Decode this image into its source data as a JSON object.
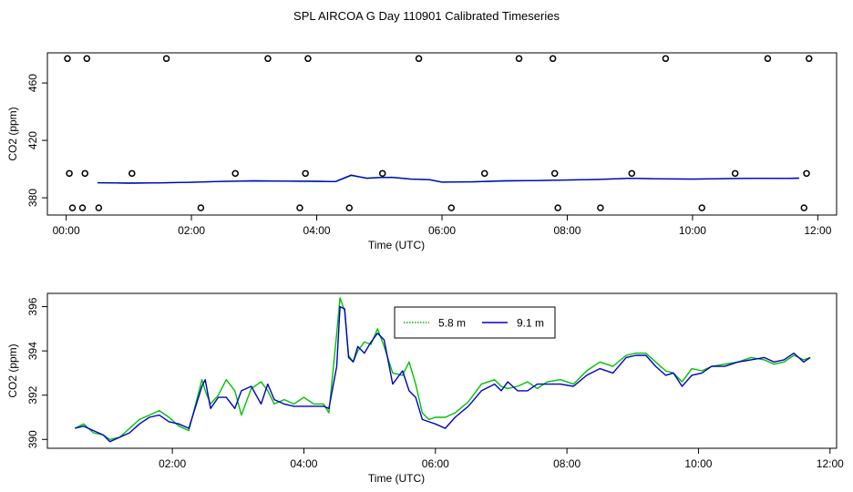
{
  "page_title": "SPL AIRCOA G  Day 110901  Calibrated Timeseries",
  "chart_data": [
    {
      "id": "top",
      "type": "line",
      "title": "SPL AIRCOA G  Day 110901  Calibrated Timeseries",
      "xlabel": "Time (UTC)",
      "ylabel": "CO2 (ppm)",
      "xlim": [
        -0.3,
        12.3
      ],
      "ylim": [
        368,
        481
      ],
      "xticks": [
        0,
        2,
        4,
        6,
        8,
        10,
        12
      ],
      "xtick_labels": [
        "00:00",
        "02:00",
        "04:00",
        "06:00",
        "08:00",
        "10:00",
        "12:00"
      ],
      "yticks": [
        380,
        420,
        460
      ],
      "ytick_labels": [
        "380",
        "420",
        "460"
      ],
      "calibration_points": [
        {
          "x": 0.02,
          "y": 477
        },
        {
          "x": 0.33,
          "y": 477
        },
        {
          "x": 1.6,
          "y": 477
        },
        {
          "x": 3.22,
          "y": 477
        },
        {
          "x": 3.86,
          "y": 477
        },
        {
          "x": 5.63,
          "y": 477
        },
        {
          "x": 7.23,
          "y": 477
        },
        {
          "x": 7.77,
          "y": 477
        },
        {
          "x": 9.57,
          "y": 477
        },
        {
          "x": 11.2,
          "y": 477
        },
        {
          "x": 11.86,
          "y": 477
        },
        {
          "x": 0.05,
          "y": 397
        },
        {
          "x": 0.3,
          "y": 397
        },
        {
          "x": 1.05,
          "y": 397
        },
        {
          "x": 2.7,
          "y": 397
        },
        {
          "x": 3.82,
          "y": 397
        },
        {
          "x": 5.05,
          "y": 397
        },
        {
          "x": 6.68,
          "y": 397
        },
        {
          "x": 7.8,
          "y": 397
        },
        {
          "x": 9.03,
          "y": 397
        },
        {
          "x": 10.68,
          "y": 397
        },
        {
          "x": 11.82,
          "y": 397
        },
        {
          "x": 0.1,
          "y": 373
        },
        {
          "x": 0.26,
          "y": 373
        },
        {
          "x": 0.52,
          "y": 373
        },
        {
          "x": 2.15,
          "y": 373
        },
        {
          "x": 3.73,
          "y": 373
        },
        {
          "x": 4.52,
          "y": 373
        },
        {
          "x": 6.15,
          "y": 373
        },
        {
          "x": 7.85,
          "y": 373
        },
        {
          "x": 8.53,
          "y": 373
        },
        {
          "x": 10.15,
          "y": 373
        },
        {
          "x": 11.78,
          "y": 373
        }
      ],
      "series": [
        {
          "name": "5.8 m",
          "color": "#00c000",
          "x": [
            0.5,
            1.0,
            1.5,
            2.0,
            2.5,
            3.0,
            3.5,
            4.0,
            4.3,
            4.55,
            4.8,
            5.0,
            5.2,
            5.5,
            5.8,
            6.0,
            6.5,
            7.0,
            7.5,
            8.0,
            8.5,
            9.0,
            9.5,
            10.0,
            10.5,
            11.0,
            11.5,
            11.7
          ],
          "y": [
            390.5,
            390.2,
            390.4,
            390.8,
            391.4,
            391.8,
            391.6,
            391.5,
            391.3,
            395.5,
            393.8,
            394.2,
            394.3,
            393.1,
            392.6,
            391.0,
            391.2,
            391.8,
            392.0,
            392.4,
            392.8,
            393.6,
            393.2,
            393.0,
            393.3,
            393.6,
            393.5,
            393.7
          ]
        },
        {
          "name": "9.1 m",
          "color": "#0000cc",
          "x": [
            0.5,
            1.0,
            1.5,
            2.0,
            2.5,
            3.0,
            3.5,
            4.0,
            4.3,
            4.55,
            4.8,
            5.0,
            5.2,
            5.5,
            5.8,
            6.0,
            6.5,
            7.0,
            7.5,
            8.0,
            8.5,
            9.0,
            9.5,
            10.0,
            10.5,
            11.0,
            11.5,
            11.7
          ],
          "y": [
            390.5,
            390.2,
            390.4,
            390.8,
            391.4,
            391.8,
            391.6,
            391.5,
            391.3,
            395.8,
            393.6,
            394.1,
            394.2,
            393.0,
            392.6,
            390.9,
            391.1,
            391.8,
            392.0,
            392.4,
            392.8,
            393.6,
            393.2,
            393.0,
            393.3,
            393.6,
            393.5,
            393.7
          ]
        }
      ]
    },
    {
      "id": "bottom",
      "type": "line",
      "title": "",
      "xlabel": "Time (UTC)",
      "ylabel": "CO2 (ppm)",
      "xlim": [
        0.1,
        12.1
      ],
      "ylim": [
        389.6,
        396.6
      ],
      "xticks": [
        2,
        4,
        6,
        8,
        10,
        12
      ],
      "xtick_labels": [
        "02:00",
        "04:00",
        "06:00",
        "08:00",
        "10:00",
        "12:00"
      ],
      "yticks": [
        390,
        392,
        394,
        396
      ],
      "ytick_labels": [
        "390",
        "392",
        "394",
        "396"
      ],
      "legend": {
        "position": "top-center",
        "entries": [
          "5.8 m",
          "9.1 m"
        ]
      },
      "series": [
        {
          "name": "5.8 m",
          "color": "#00c000",
          "x": [
            0.52,
            0.65,
            0.8,
            0.95,
            1.05,
            1.2,
            1.35,
            1.5,
            1.65,
            1.8,
            1.95,
            2.1,
            2.25,
            2.45,
            2.5,
            2.58,
            2.7,
            2.82,
            2.95,
            3.05,
            3.2,
            3.35,
            3.45,
            3.55,
            3.7,
            3.85,
            4.0,
            4.15,
            4.3,
            4.38,
            4.5,
            4.55,
            4.62,
            4.68,
            4.75,
            4.82,
            4.92,
            5.02,
            5.12,
            5.22,
            5.35,
            5.5,
            5.6,
            5.7,
            5.8,
            5.9,
            6.0,
            6.15,
            6.3,
            6.5,
            6.7,
            6.9,
            7.0,
            7.1,
            7.25,
            7.4,
            7.55,
            7.7,
            7.9,
            8.1,
            8.3,
            8.5,
            8.7,
            8.9,
            9.05,
            9.2,
            9.35,
            9.5,
            9.62,
            9.75,
            9.9,
            10.05,
            10.2,
            10.4,
            10.6,
            10.8,
            11.0,
            11.15,
            11.3,
            11.45,
            11.6,
            11.7
          ],
          "y": [
            390.5,
            390.7,
            390.3,
            390.2,
            390.0,
            390.1,
            390.5,
            390.9,
            391.1,
            391.3,
            391.0,
            390.6,
            390.4,
            392.7,
            392.2,
            391.6,
            392.0,
            392.7,
            392.2,
            391.1,
            392.3,
            392.6,
            392.2,
            391.6,
            391.8,
            391.6,
            391.9,
            391.6,
            391.6,
            391.2,
            394.8,
            396.4,
            395.8,
            393.8,
            393.5,
            394.0,
            394.4,
            394.3,
            395.0,
            394.2,
            393.0,
            392.9,
            393.5,
            392.5,
            391.2,
            390.9,
            391.0,
            391.0,
            391.2,
            391.7,
            392.5,
            392.7,
            392.4,
            392.3,
            392.4,
            392.6,
            392.3,
            392.6,
            392.7,
            392.5,
            393.1,
            393.5,
            393.3,
            393.8,
            393.9,
            393.9,
            393.5,
            393.1,
            393.0,
            392.6,
            393.2,
            393.1,
            393.3,
            393.4,
            393.5,
            393.7,
            393.6,
            393.4,
            393.5,
            393.8,
            393.6,
            393.7
          ]
        },
        {
          "name": "9.1 m",
          "color": "#0000cc",
          "x": [
            0.52,
            0.65,
            0.8,
            0.95,
            1.05,
            1.2,
            1.35,
            1.5,
            1.65,
            1.8,
            1.95,
            2.1,
            2.25,
            2.45,
            2.5,
            2.58,
            2.7,
            2.82,
            2.95,
            3.05,
            3.2,
            3.35,
            3.45,
            3.55,
            3.7,
            3.85,
            4.0,
            4.15,
            4.3,
            4.38,
            4.5,
            4.55,
            4.62,
            4.68,
            4.75,
            4.82,
            4.92,
            5.02,
            5.12,
            5.22,
            5.35,
            5.5,
            5.6,
            5.7,
            5.8,
            5.9,
            6.0,
            6.15,
            6.3,
            6.5,
            6.7,
            6.9,
            7.0,
            7.1,
            7.25,
            7.4,
            7.55,
            7.7,
            7.9,
            8.1,
            8.3,
            8.5,
            8.7,
            8.9,
            9.05,
            9.2,
            9.35,
            9.5,
            9.62,
            9.75,
            9.9,
            10.05,
            10.2,
            10.4,
            10.6,
            10.8,
            11.0,
            11.15,
            11.3,
            11.45,
            11.6,
            11.7
          ],
          "y": [
            390.5,
            390.6,
            390.4,
            390.2,
            389.9,
            390.1,
            390.3,
            390.7,
            391.0,
            391.1,
            390.8,
            390.7,
            390.5,
            392.4,
            392.7,
            391.4,
            391.9,
            391.9,
            391.4,
            392.2,
            392.4,
            391.6,
            392.5,
            391.8,
            391.6,
            391.5,
            391.5,
            391.5,
            391.5,
            391.4,
            393.3,
            396.0,
            395.9,
            393.7,
            393.5,
            394.2,
            393.9,
            394.4,
            394.8,
            394.5,
            392.5,
            393.1,
            392.2,
            391.9,
            390.9,
            390.8,
            390.7,
            390.5,
            391.0,
            391.5,
            392.2,
            392.5,
            392.2,
            392.6,
            392.2,
            392.2,
            392.5,
            392.5,
            392.5,
            392.4,
            392.9,
            393.2,
            393.0,
            393.7,
            393.8,
            393.8,
            393.3,
            392.9,
            393.0,
            392.4,
            392.9,
            393.0,
            393.3,
            393.3,
            393.5,
            393.6,
            393.7,
            393.5,
            393.6,
            393.9,
            393.5,
            393.7
          ]
        }
      ]
    }
  ]
}
